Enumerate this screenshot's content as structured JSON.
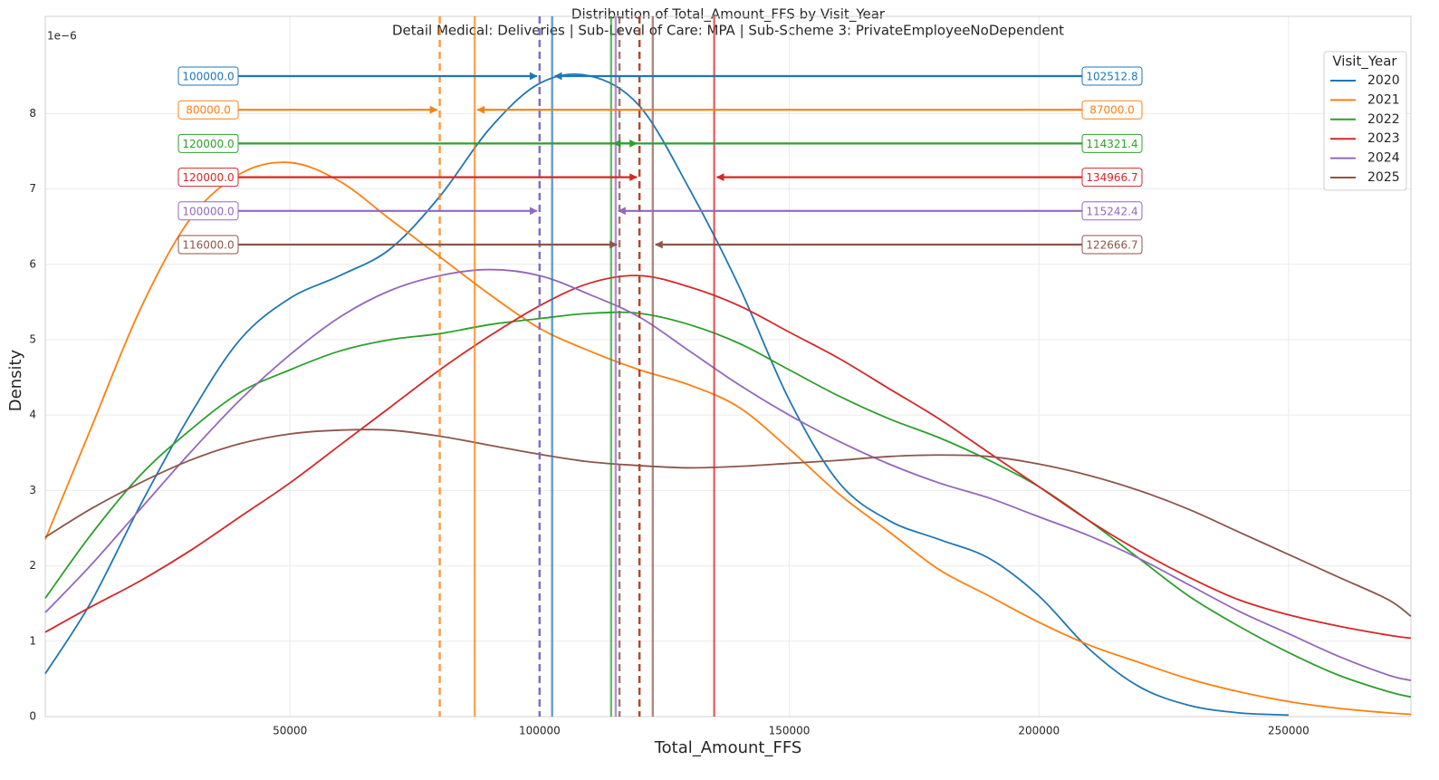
{
  "chart_data": {
    "type": "line",
    "title": "Distribution of Total_Amount_FFS by Visit_Year",
    "subtitle": "Detail Medical: Deliveries | Sub-Level of Care: MPA | Sub-Scheme 3: PrivateEmployeeNoDependent",
    "x_label": "Total_Amount_FFS",
    "y_label": "Density",
    "y_offset_label": "1e−6",
    "legend_title": "Visit_Year",
    "legend": "upper right",
    "grid": true,
    "xlim": [
      1000,
      274500
    ],
    "ylim": [
      0,
      9.29
    ],
    "xticks": [
      50000,
      100000,
      150000,
      200000,
      250000
    ],
    "yticks": [
      0,
      1,
      2,
      3,
      4,
      5,
      6,
      7,
      8
    ],
    "x": [
      1000,
      10000,
      20000,
      30000,
      40000,
      50000,
      60000,
      70000,
      80000,
      90000,
      100000,
      110000,
      120000,
      130000,
      140000,
      150000,
      160000,
      170000,
      180000,
      190000,
      200000,
      210000,
      220000,
      230000,
      240000,
      250000,
      260000,
      270000,
      274500
    ],
    "series": [
      {
        "name": "2020",
        "color": "#1f77b4",
        "median": {
          "value": 100000,
          "label": "100000.0"
        },
        "mean": 102512.8,
        "values": [
          0.57,
          1.5,
          2.8,
          4.0,
          5.0,
          5.55,
          5.85,
          6.2,
          6.9,
          7.8,
          8.4,
          8.5,
          8.1,
          7.0,
          5.7,
          4.2,
          3.1,
          2.6,
          2.35,
          2.1,
          1.6,
          0.9,
          0.4,
          0.15,
          0.05,
          0.02,
          null,
          null,
          null
        ]
      },
      {
        "name": "2021",
        "color": "#ff7f0e",
        "median": {
          "value": 80000,
          "label": "80000.0"
        },
        "mean": {
          "value": 87000,
          "label": "87000.0"
        },
        "values": [
          2.35,
          3.8,
          5.4,
          6.6,
          7.2,
          7.35,
          7.1,
          6.6,
          6.1,
          5.6,
          5.15,
          4.85,
          4.6,
          4.4,
          4.1,
          3.55,
          2.95,
          2.45,
          1.95,
          1.6,
          1.25,
          0.95,
          0.72,
          0.5,
          0.33,
          0.2,
          0.11,
          0.05,
          0.03
        ]
      },
      {
        "name": "2022",
        "color": "#2ca02c",
        "median": {
          "value": 120000,
          "label": "120000.0"
        },
        "mean": 114321.4,
        "values": [
          1.57,
          2.4,
          3.2,
          3.8,
          4.3,
          4.6,
          4.85,
          5.0,
          5.08,
          5.2,
          5.28,
          5.35,
          5.35,
          5.2,
          4.95,
          4.6,
          4.25,
          3.95,
          3.7,
          3.4,
          3.05,
          2.6,
          2.1,
          1.6,
          1.2,
          0.85,
          0.55,
          0.33,
          0.26
        ]
      },
      {
        "name": "2023",
        "color": "#d62728",
        "median": {
          "value": 120000,
          "label": "120000.0"
        },
        "mean": 134966.7,
        "values": [
          1.12,
          1.45,
          1.8,
          2.2,
          2.65,
          3.1,
          3.6,
          4.1,
          4.6,
          5.05,
          5.45,
          5.75,
          5.85,
          5.7,
          5.45,
          5.1,
          4.75,
          4.35,
          3.95,
          3.5,
          3.05,
          2.6,
          2.2,
          1.85,
          1.55,
          1.35,
          1.2,
          1.08,
          1.04
        ]
      },
      {
        "name": "2024",
        "color": "#9467bd",
        "median": {
          "value": 100000,
          "label": "100000.0"
        },
        "mean": 115242.4,
        "values": [
          1.38,
          2.0,
          2.75,
          3.5,
          4.2,
          4.8,
          5.3,
          5.65,
          5.85,
          5.93,
          5.85,
          5.6,
          5.3,
          4.85,
          4.4,
          4.0,
          3.65,
          3.35,
          3.1,
          2.9,
          2.65,
          2.4,
          2.1,
          1.75,
          1.4,
          1.1,
          0.8,
          0.55,
          0.48
        ]
      },
      {
        "name": "2025",
        "color": "#8c564b",
        "median": {
          "value": 116000,
          "label": "116000.0"
        },
        "mean": 122666.7,
        "values": [
          2.38,
          2.75,
          3.1,
          3.4,
          3.62,
          3.75,
          3.8,
          3.8,
          3.72,
          3.6,
          3.48,
          3.38,
          3.33,
          3.3,
          3.32,
          3.36,
          3.4,
          3.45,
          3.47,
          3.45,
          3.35,
          3.2,
          3.0,
          2.75,
          2.45,
          2.15,
          1.85,
          1.55,
          1.33
        ]
      }
    ]
  }
}
